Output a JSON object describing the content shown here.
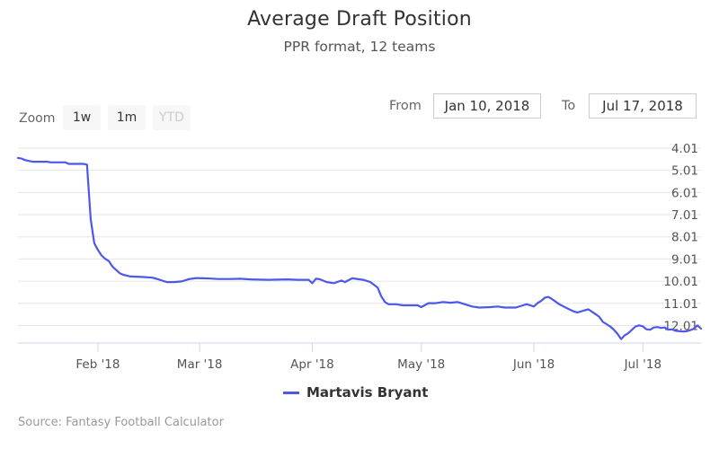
{
  "header": {
    "title": "Average Draft Position",
    "subtitle": "PPR format, 12 teams"
  },
  "zoom": {
    "label": "Zoom",
    "buttons": [
      {
        "label": "1w",
        "enabled": true
      },
      {
        "label": "1m",
        "enabled": true
      },
      {
        "label": "YTD",
        "enabled": false
      }
    ]
  },
  "range": {
    "from_label": "From",
    "from_value": "Jan 10, 2018",
    "to_label": "To",
    "to_value": "Jul 17, 2018"
  },
  "legend": {
    "label": "Martavis Bryant"
  },
  "source": "Source: Fantasy Football Calculator",
  "colors": {
    "series": "#4d57e8",
    "grid": "#e6e6e6",
    "axis_line": "#ccd6eb"
  },
  "chart_data": {
    "type": "line",
    "title": "Average Draft Position",
    "subtitle": "PPR format, 12 teams",
    "xlabel": "",
    "ylabel": "",
    "x_type": "date",
    "xlim": [
      "2018-01-10",
      "2018-07-17"
    ],
    "ylim": [
      4.01,
      12.8
    ],
    "y_reversed": true,
    "grid": true,
    "legend_position": "bottom",
    "x_ticks": [
      {
        "date": "2018-02-01",
        "label": "Feb '18"
      },
      {
        "date": "2018-03-01",
        "label": "Mar '18"
      },
      {
        "date": "2018-04-01",
        "label": "Apr '18"
      },
      {
        "date": "2018-05-01",
        "label": "May '18"
      },
      {
        "date": "2018-06-01",
        "label": "Jun '18"
      },
      {
        "date": "2018-07-01",
        "label": "Jul '18"
      }
    ],
    "y_ticks": [
      4.01,
      5.01,
      6.01,
      7.01,
      8.01,
      9.01,
      10.01,
      11.01,
      12.01
    ],
    "series": [
      {
        "name": "Martavis Bryant",
        "points": [
          [
            "2018-01-10",
            4.45
          ],
          [
            "2018-01-11",
            4.48
          ],
          [
            "2018-01-12",
            4.55
          ],
          [
            "2018-01-14",
            4.62
          ],
          [
            "2018-01-15",
            4.62
          ],
          [
            "2018-01-18",
            4.62
          ],
          [
            "2018-01-19",
            4.65
          ],
          [
            "2018-01-23",
            4.65
          ],
          [
            "2018-01-24",
            4.72
          ],
          [
            "2018-01-28",
            4.72
          ],
          [
            "2018-01-29",
            4.75
          ],
          [
            "2018-01-30",
            7.2
          ],
          [
            "2018-01-31",
            8.3
          ],
          [
            "2018-02-01",
            8.6
          ],
          [
            "2018-02-02",
            8.85
          ],
          [
            "2018-02-03",
            9.0
          ],
          [
            "2018-02-04",
            9.1
          ],
          [
            "2018-02-05",
            9.35
          ],
          [
            "2018-02-06",
            9.5
          ],
          [
            "2018-02-07",
            9.65
          ],
          [
            "2018-02-08",
            9.72
          ],
          [
            "2018-02-10",
            9.8
          ],
          [
            "2018-02-13",
            9.82
          ],
          [
            "2018-02-16",
            9.85
          ],
          [
            "2018-02-18",
            9.95
          ],
          [
            "2018-02-19",
            10.0
          ],
          [
            "2018-02-20",
            10.05
          ],
          [
            "2018-02-22",
            10.05
          ],
          [
            "2018-02-24",
            10.02
          ],
          [
            "2018-02-26",
            9.92
          ],
          [
            "2018-02-28",
            9.87
          ],
          [
            "2018-03-02",
            9.88
          ],
          [
            "2018-03-04",
            9.89
          ],
          [
            "2018-03-06",
            9.91
          ],
          [
            "2018-03-10",
            9.91
          ],
          [
            "2018-03-12",
            9.9
          ],
          [
            "2018-03-15",
            9.93
          ],
          [
            "2018-03-20",
            9.95
          ],
          [
            "2018-03-25",
            9.93
          ],
          [
            "2018-03-28",
            9.95
          ],
          [
            "2018-03-31",
            9.95
          ],
          [
            "2018-04-01",
            10.1
          ],
          [
            "2018-04-02",
            9.9
          ],
          [
            "2018-04-03",
            9.92
          ],
          [
            "2018-04-05",
            10.05
          ],
          [
            "2018-04-07",
            10.1
          ],
          [
            "2018-04-09",
            9.98
          ],
          [
            "2018-04-10",
            10.05
          ],
          [
            "2018-04-12",
            9.88
          ],
          [
            "2018-04-15",
            9.95
          ],
          [
            "2018-04-17",
            10.05
          ],
          [
            "2018-04-19",
            10.3
          ],
          [
            "2018-04-20",
            10.7
          ],
          [
            "2018-04-21",
            10.95
          ],
          [
            "2018-04-22",
            11.05
          ],
          [
            "2018-04-24",
            11.05
          ],
          [
            "2018-04-26",
            11.1
          ],
          [
            "2018-04-28",
            11.1
          ],
          [
            "2018-04-30",
            11.1
          ],
          [
            "2018-05-01",
            11.18
          ],
          [
            "2018-05-03",
            11.0
          ],
          [
            "2018-05-05",
            11.0
          ],
          [
            "2018-05-07",
            10.95
          ],
          [
            "2018-05-09",
            10.98
          ],
          [
            "2018-05-11",
            10.95
          ],
          [
            "2018-05-13",
            11.05
          ],
          [
            "2018-05-15",
            11.15
          ],
          [
            "2018-05-17",
            11.2
          ],
          [
            "2018-05-20",
            11.18
          ],
          [
            "2018-05-22",
            11.15
          ],
          [
            "2018-05-24",
            11.2
          ],
          [
            "2018-05-27",
            11.2
          ],
          [
            "2018-05-29",
            11.1
          ],
          [
            "2018-05-30",
            11.05
          ],
          [
            "2018-05-31",
            11.1
          ],
          [
            "2018-06-01",
            11.15
          ],
          [
            "2018-06-02",
            11.0
          ],
          [
            "2018-06-03",
            10.9
          ],
          [
            "2018-06-04",
            10.75
          ],
          [
            "2018-06-05",
            10.72
          ],
          [
            "2018-06-06",
            10.82
          ],
          [
            "2018-06-08",
            11.05
          ],
          [
            "2018-06-10",
            11.22
          ],
          [
            "2018-06-12",
            11.38
          ],
          [
            "2018-06-13",
            11.42
          ],
          [
            "2018-06-15",
            11.32
          ],
          [
            "2018-06-16",
            11.28
          ],
          [
            "2018-06-18",
            11.5
          ],
          [
            "2018-06-19",
            11.62
          ],
          [
            "2018-06-20",
            11.85
          ],
          [
            "2018-06-21",
            11.95
          ],
          [
            "2018-06-22",
            12.05
          ],
          [
            "2018-06-23",
            12.2
          ],
          [
            "2018-06-24",
            12.38
          ],
          [
            "2018-06-25",
            12.62
          ],
          [
            "2018-06-26",
            12.45
          ],
          [
            "2018-06-27",
            12.35
          ],
          [
            "2018-06-28",
            12.2
          ],
          [
            "2018-06-29",
            12.05
          ],
          [
            "2018-06-30",
            12.0
          ],
          [
            "2018-07-01",
            12.05
          ],
          [
            "2018-07-02",
            12.18
          ],
          [
            "2018-07-03",
            12.2
          ],
          [
            "2018-07-04",
            12.1
          ],
          [
            "2018-07-05",
            12.08
          ],
          [
            "2018-07-06",
            12.12
          ],
          [
            "2018-07-07",
            12.1
          ],
          [
            "2018-07-08",
            12.2
          ],
          [
            "2018-07-09",
            12.18
          ],
          [
            "2018-07-10",
            12.25
          ],
          [
            "2018-07-12",
            12.28
          ],
          [
            "2018-07-13",
            12.27
          ],
          [
            "2018-07-14",
            12.22
          ],
          [
            "2018-07-15",
            12.15
          ],
          [
            "2018-07-16",
            12.0
          ],
          [
            "2018-07-17",
            12.15
          ]
        ]
      }
    ]
  }
}
